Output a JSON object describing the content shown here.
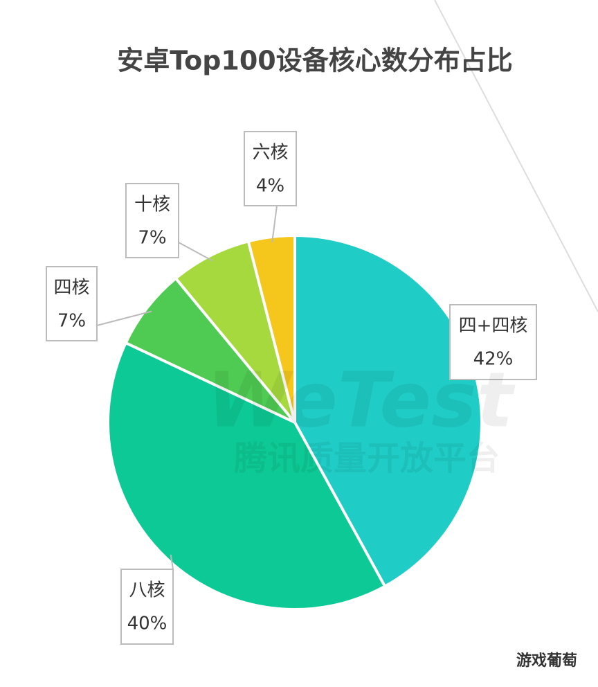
{
  "chart_data": {
    "type": "pie",
    "title": "安卓Top100设备核心数分布占比",
    "categories": [
      "四+四核",
      "八核",
      "四核",
      "十核",
      "六核"
    ],
    "values": [
      42,
      40,
      7,
      7,
      4
    ],
    "value_labels": [
      "42%",
      "40%",
      "7%",
      "7%",
      "4%"
    ],
    "colors": [
      "#1fcdc6",
      "#0dc995",
      "#4fcb53",
      "#a5d93d",
      "#f5c61c"
    ],
    "watermark": "WeTest",
    "watermark_subtitle": "腾讯质量开放平台",
    "credit": "游戏葡萄"
  }
}
